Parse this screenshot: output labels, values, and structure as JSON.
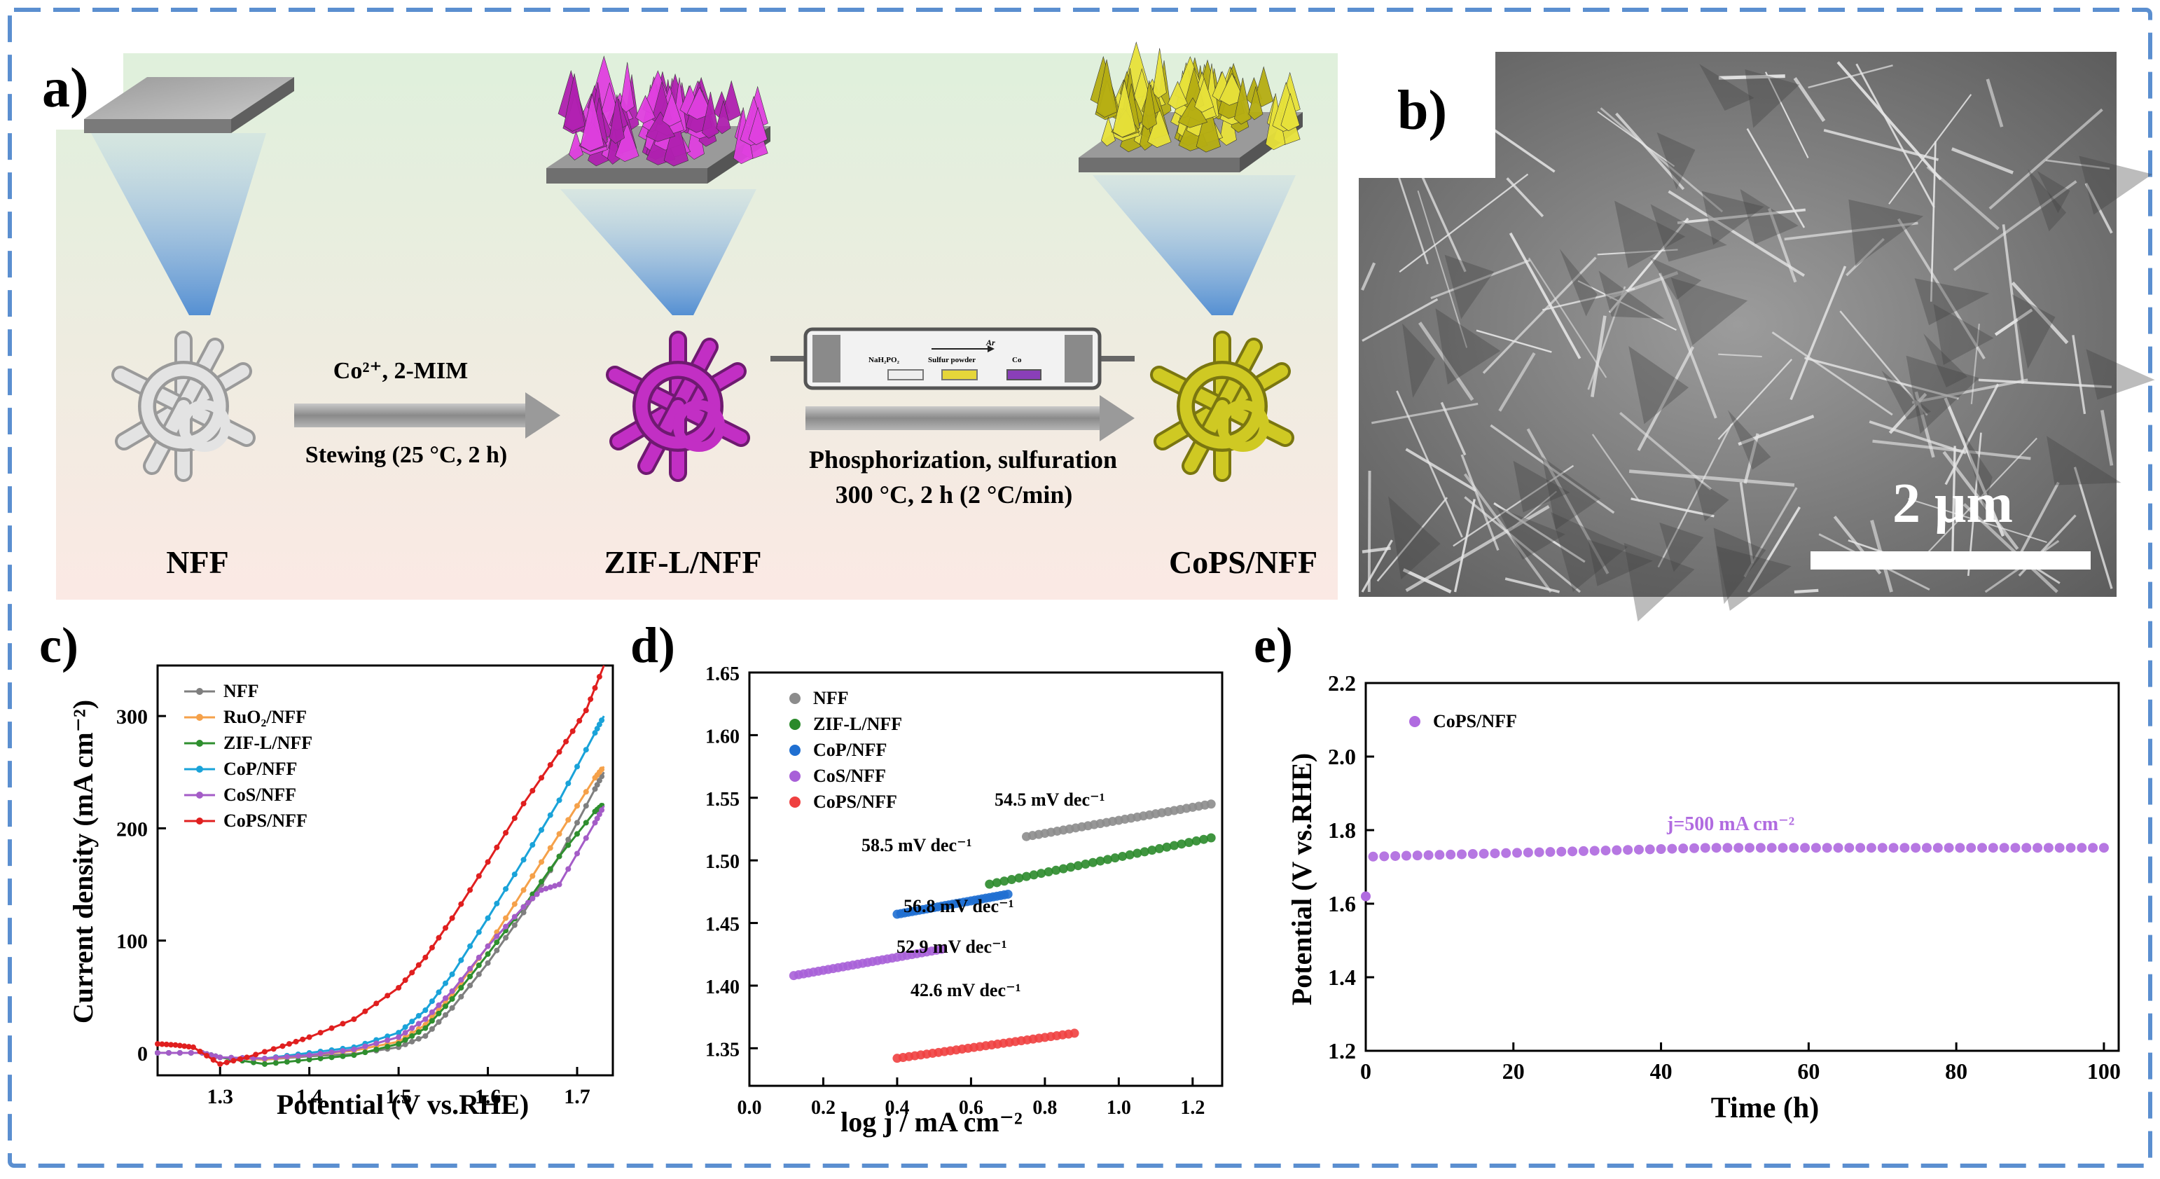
{
  "panel_a": {
    "label": "a)",
    "step1_top": "Co²⁺, 2-MIM",
    "step1_bottom": "Stewing (25 °C, 2 h)",
    "step2_line1": "Phosphorization, sulfuration",
    "step2_line2": "300 °C, 2 h (2 °C/min)",
    "tube_ar": "Ar",
    "tube_naph": "NaH₂PO₂",
    "tube_sulfur": "Sulfur powder",
    "tube_co": "Co",
    "label_nff": "NFF",
    "label_zif": "ZIF-L/NFF",
    "label_cops": "CoPS/NFF",
    "colors": {
      "zif": "#c22fc4",
      "cops": "#c8c21a",
      "nff": "#d8d8d8"
    }
  },
  "panel_b": {
    "label": "b)",
    "scale_text": "2 μm"
  },
  "chart_data": [
    {
      "id": "c",
      "label": "c)",
      "type": "line",
      "xlabel": "Potential (V vs.RHE)",
      "ylabel": "Current density (mA cm⁻²)",
      "xlim": [
        1.23,
        1.74
      ],
      "ylim": [
        -20,
        345
      ],
      "xticks": [
        1.3,
        1.4,
        1.5,
        1.6,
        1.7
      ],
      "yticks": [
        0,
        100,
        200,
        300
      ],
      "legend": "top-left",
      "series": [
        {
          "name": "NFF",
          "color": "#7f7f7f",
          "x": [
            1.23,
            1.28,
            1.3,
            1.35,
            1.4,
            1.45,
            1.5,
            1.53,
            1.56,
            1.6,
            1.64,
            1.68,
            1.72,
            1.73
          ],
          "y": [
            0,
            0,
            -4,
            -6,
            -3,
            -1,
            5,
            15,
            40,
            80,
            125,
            175,
            235,
            250
          ]
        },
        {
          "name": "RuO₂/NFF",
          "color": "#f5a14a",
          "x": [
            1.23,
            1.28,
            1.3,
            1.35,
            1.4,
            1.45,
            1.5,
            1.53,
            1.56,
            1.6,
            1.64,
            1.68,
            1.72,
            1.73
          ],
          "y": [
            0,
            0,
            -4,
            -6,
            -2,
            2,
            10,
            25,
            52,
            95,
            145,
            195,
            245,
            255
          ]
        },
        {
          "name": "ZIF-L/NFF",
          "color": "#2f8f2f",
          "x": [
            1.23,
            1.28,
            1.3,
            1.35,
            1.4,
            1.45,
            1.5,
            1.53,
            1.56,
            1.6,
            1.64,
            1.68,
            1.72,
            1.73
          ],
          "y": [
            0,
            0,
            -4,
            -10,
            -6,
            -2,
            8,
            22,
            48,
            88,
            130,
            175,
            215,
            222
          ]
        },
        {
          "name": "CoP/NFF",
          "color": "#1aa3d9",
          "x": [
            1.23,
            1.28,
            1.3,
            1.35,
            1.4,
            1.45,
            1.5,
            1.53,
            1.56,
            1.6,
            1.64,
            1.68,
            1.72,
            1.73
          ],
          "y": [
            0,
            0,
            -4,
            -5,
            0,
            5,
            18,
            38,
            70,
            120,
            172,
            225,
            285,
            300
          ]
        },
        {
          "name": "CoS/NFF",
          "color": "#a45cc7",
          "x": [
            1.23,
            1.28,
            1.3,
            1.35,
            1.4,
            1.45,
            1.5,
            1.53,
            1.56,
            1.6,
            1.64,
            1.66,
            1.68,
            1.72,
            1.73
          ],
          "y": [
            0,
            0,
            -4,
            -5,
            -2,
            3,
            14,
            30,
            55,
            95,
            130,
            145,
            150,
            205,
            220
          ]
        },
        {
          "name": "CoPS/NFF",
          "color": "#e01f1f",
          "x": [
            1.23,
            1.25,
            1.27,
            1.3,
            1.33,
            1.37,
            1.4,
            1.45,
            1.5,
            1.53,
            1.56,
            1.6,
            1.64,
            1.68,
            1.71,
            1.73
          ],
          "y": [
            8,
            7,
            5,
            -10,
            -4,
            6,
            14,
            30,
            58,
            85,
            120,
            170,
            222,
            268,
            305,
            345
          ]
        }
      ]
    },
    {
      "id": "d",
      "label": "d)",
      "type": "scatter",
      "xlabel": "log j / mA cm⁻²",
      "xlim": [
        0.0,
        1.28
      ],
      "ylim": [
        1.32,
        1.65
      ],
      "xticks": [
        0.0,
        0.2,
        0.4,
        0.6,
        0.8,
        1.0,
        1.2
      ],
      "yticks": [
        1.35,
        1.4,
        1.45,
        1.5,
        1.55,
        1.6,
        1.65
      ],
      "legend": "top-left",
      "series": [
        {
          "name": "NFF",
          "color": "#8c8c8c",
          "x_range": [
            0.75,
            1.25
          ],
          "y_range": [
            1.519,
            1.545
          ],
          "slope_label": "54.5 mV dec⁻¹"
        },
        {
          "name": "ZIF-L/NFF",
          "color": "#2a8a2a",
          "x_range": [
            0.65,
            1.25
          ],
          "y_range": [
            1.481,
            1.518
          ],
          "slope_label": "58.5 mV dec⁻¹"
        },
        {
          "name": "CoP/NFF",
          "color": "#1f6fd1",
          "x_range": [
            0.4,
            0.7
          ],
          "y_range": [
            1.457,
            1.473
          ],
          "slope_label": "56.8 mV dec⁻¹"
        },
        {
          "name": "CoS/NFF",
          "color": "#a860d8",
          "x_range": [
            0.12,
            0.52
          ],
          "y_range": [
            1.408,
            1.429
          ],
          "slope_label": "52.9 mV dec⁻¹"
        },
        {
          "name": "CoPS/NFF",
          "color": "#ef4040",
          "x_range": [
            0.4,
            0.88
          ],
          "y_range": [
            1.342,
            1.362
          ],
          "slope_label": "42.6 mV dec⁻¹"
        }
      ]
    },
    {
      "id": "e",
      "label": "e)",
      "type": "scatter",
      "xlabel": "Time (h)",
      "ylabel": "Potential (V vs.RHE)",
      "xlim": [
        0,
        102
      ],
      "ylim": [
        1.2,
        2.2
      ],
      "xticks": [
        0,
        20,
        40,
        60,
        80,
        100
      ],
      "yticks": [
        1.2,
        1.4,
        1.6,
        1.8,
        2.0,
        2.2
      ],
      "legend": "top-left",
      "annotation": "j=500 mA cm⁻²",
      "series": [
        {
          "name": "CoPS/NFF",
          "color": "#b06be0",
          "x_start": 1,
          "x_end": 101,
          "x_step": 1.5,
          "y_start": 1.728,
          "y_end": 1.752,
          "first_point": [
            0,
            1.62
          ]
        }
      ]
    }
  ]
}
